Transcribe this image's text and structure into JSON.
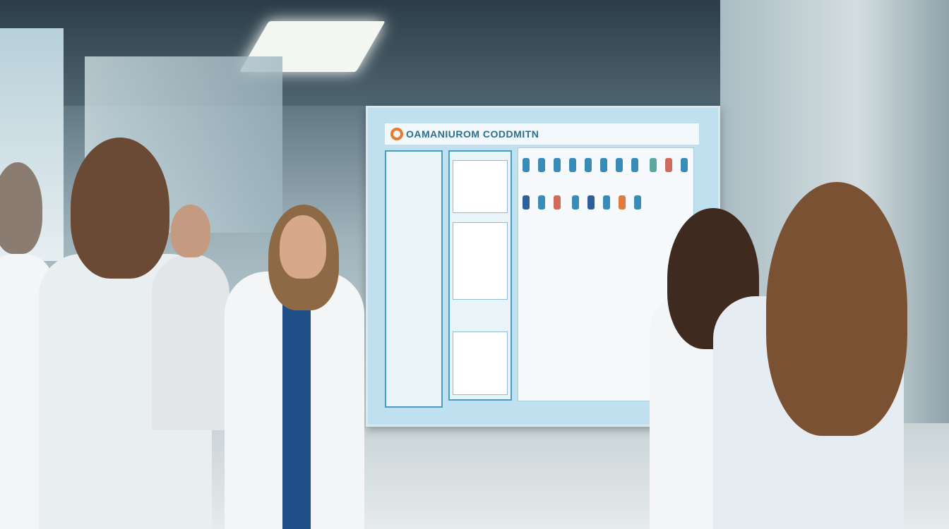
{
  "scene": {
    "description_colors": {
      "board_frame": "#bfe0ee",
      "accent_orange": "#e77b32",
      "title_teal": "#2d6f8c",
      "coat_white": "#f3f5f6"
    }
  },
  "board": {
    "title": "OAMANIUROM CODDMITN",
    "icon": "logo-circle-icon"
  }
}
